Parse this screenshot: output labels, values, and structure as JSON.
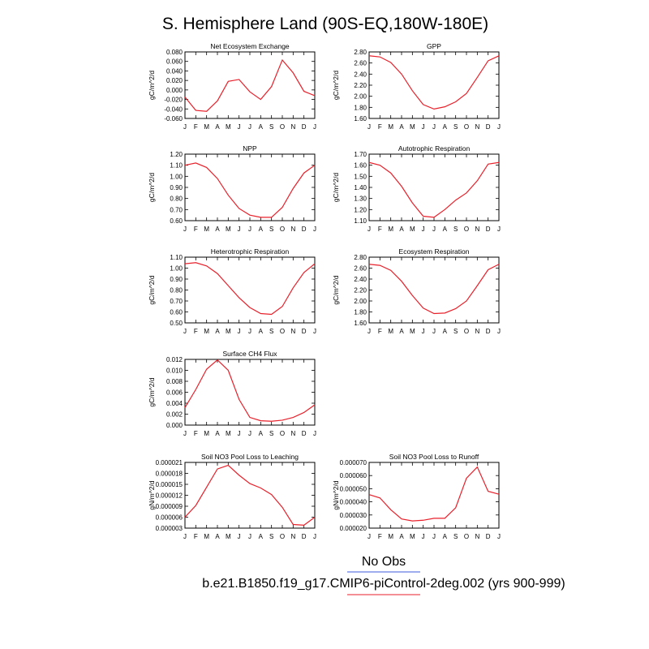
{
  "page_title": "S. Hemisphere Land (90S-EQ,180W-180E)",
  "months": [
    "J",
    "F",
    "M",
    "A",
    "M",
    "J",
    "J",
    "A",
    "S",
    "O",
    "N",
    "D",
    "J"
  ],
  "legend": {
    "obs_label": "No Obs",
    "obs_color": "#3b5bdb",
    "model_label": "b.e21.B1850.f19_g17.CMIP6-piControl-2deg.002 (yrs 900-999)",
    "model_color": "#e8212b"
  },
  "chart_data": [
    {
      "type": "line",
      "title": "Net Ecosystem Exchange",
      "ylabel": "gC/m^2/d",
      "ylim": [
        -0.06,
        0.08
      ],
      "yticks": [
        "-0.060",
        "-0.040",
        "-0.020",
        "0.000",
        "0.020",
        "0.040",
        "0.060",
        "0.080"
      ],
      "tickvals": [
        -0.06,
        -0.04,
        -0.02,
        0,
        0.02,
        0.04,
        0.06,
        0.08
      ],
      "values": [
        -0.015,
        -0.043,
        -0.045,
        -0.023,
        0.018,
        0.022,
        -0.004,
        -0.02,
        0.007,
        0.063,
        0.036,
        -0.003,
        -0.012
      ]
    },
    {
      "type": "line",
      "title": "GPP",
      "ylabel": "gC/m^2/d",
      "ylim": [
        1.6,
        2.8
      ],
      "yticks": [
        "1.60",
        "1.80",
        "2.00",
        "2.20",
        "2.40",
        "2.60",
        "2.80"
      ],
      "tickvals": [
        1.6,
        1.8,
        2.0,
        2.2,
        2.4,
        2.6,
        2.8
      ],
      "values": [
        2.73,
        2.71,
        2.61,
        2.4,
        2.1,
        1.85,
        1.77,
        1.81,
        1.9,
        2.05,
        2.34,
        2.64,
        2.73
      ]
    },
    {
      "type": "line",
      "title": "NPP",
      "ylabel": "gC/m^2/d",
      "ylim": [
        0.6,
        1.2
      ],
      "yticks": [
        "0.60",
        "0.70",
        "0.80",
        "0.90",
        "1.00",
        "1.10",
        "1.20"
      ],
      "tickvals": [
        0.6,
        0.7,
        0.8,
        0.9,
        1.0,
        1.1,
        1.2
      ],
      "values": [
        1.1,
        1.12,
        1.08,
        0.98,
        0.83,
        0.71,
        0.65,
        0.63,
        0.63,
        0.72,
        0.89,
        1.03,
        1.1
      ]
    },
    {
      "type": "line",
      "title": "Autotrophic Respiration",
      "ylabel": "gC/m^2/d",
      "ylim": [
        1.1,
        1.7
      ],
      "yticks": [
        "1.10",
        "1.20",
        "1.30",
        "1.40",
        "1.50",
        "1.60",
        "1.70"
      ],
      "tickvals": [
        1.1,
        1.2,
        1.3,
        1.4,
        1.5,
        1.6,
        1.7
      ],
      "values": [
        1.625,
        1.6,
        1.53,
        1.41,
        1.26,
        1.14,
        1.13,
        1.2,
        1.285,
        1.35,
        1.46,
        1.61,
        1.625
      ]
    },
    {
      "type": "line",
      "title": "Heterotrophic Respiration",
      "ylabel": "gC/m^2/d",
      "ylim": [
        0.5,
        1.1
      ],
      "yticks": [
        "0.50",
        "0.60",
        "0.70",
        "0.80",
        "0.90",
        "1.00",
        "1.10"
      ],
      "tickvals": [
        0.5,
        0.6,
        0.7,
        0.8,
        0.9,
        1.0,
        1.1
      ],
      "values": [
        1.04,
        1.05,
        1.02,
        0.95,
        0.84,
        0.73,
        0.64,
        0.585,
        0.578,
        0.65,
        0.82,
        0.96,
        1.04
      ]
    },
    {
      "type": "line",
      "title": "Ecosystem Respiration",
      "ylabel": "gC/m^2/d",
      "ylim": [
        1.6,
        2.8
      ],
      "yticks": [
        "1.60",
        "1.80",
        "2.00",
        "2.20",
        "2.40",
        "2.60",
        "2.80"
      ],
      "tickvals": [
        1.6,
        1.8,
        2.0,
        2.2,
        2.4,
        2.6,
        2.8
      ],
      "values": [
        2.67,
        2.65,
        2.56,
        2.36,
        2.1,
        1.87,
        1.77,
        1.78,
        1.86,
        2.0,
        2.28,
        2.57,
        2.67
      ]
    },
    {
      "type": "line",
      "title": "Surface CH4 Flux",
      "ylabel": "gC/m^2/d",
      "ylim": [
        0.0,
        0.012
      ],
      "yticks": [
        "0.000",
        "0.002",
        "0.004",
        "0.006",
        "0.008",
        "0.010",
        "0.012"
      ],
      "tickvals": [
        0,
        0.002,
        0.004,
        0.006,
        0.008,
        0.01,
        0.012
      ],
      "values": [
        0.0032,
        0.0065,
        0.0102,
        0.0119,
        0.01,
        0.0047,
        0.0014,
        0.0008,
        0.0007,
        0.0009,
        0.0014,
        0.0023,
        0.0037
      ]
    },
    {
      "type": "line",
      "title": "Soil NO3 Pool Loss to Leaching",
      "ylabel": "gN/m^2/d",
      "ylim": [
        3e-06,
        2.1e-05
      ],
      "yticks": [
        "0.000003",
        "0.000006",
        "0.000009",
        "0.000012",
        "0.000015",
        "0.000018",
        "0.000021"
      ],
      "tickvals": [
        3e-06,
        6e-06,
        9e-06,
        1.2e-05,
        1.5e-05,
        1.8e-05,
        2.1e-05
      ],
      "values": [
        6e-06,
        9.2e-06,
        1.42e-05,
        1.92e-05,
        2.02e-05,
        1.75e-05,
        1.52e-05,
        1.4e-05,
        1.22e-05,
        8.7e-06,
        4e-06,
        3.8e-06,
        6e-06
      ]
    },
    {
      "type": "line",
      "title": "Soil NO3 Pool Loss to Runoff",
      "ylabel": "gN/m^2/d",
      "ylim": [
        2e-05,
        7e-05
      ],
      "yticks": [
        "0.000020",
        "0.000030",
        "0.000040",
        "0.000050",
        "0.000060",
        "0.000070"
      ],
      "tickvals": [
        2e-05,
        3e-05,
        4e-05,
        5e-05,
        6e-05,
        7e-05
      ],
      "values": [
        4.55e-05,
        4.3e-05,
        3.4e-05,
        2.7e-05,
        2.55e-05,
        2.6e-05,
        2.75e-05,
        2.75e-05,
        3.55e-05,
        5.8e-05,
        6.65e-05,
        4.8e-05,
        4.58e-05
      ]
    }
  ]
}
